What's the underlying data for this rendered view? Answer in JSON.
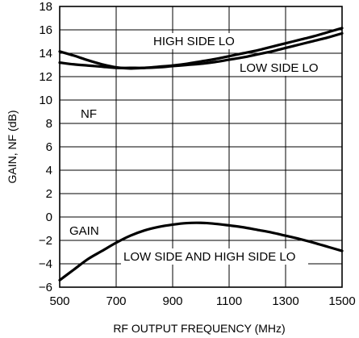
{
  "chart_data": {
    "type": "line",
    "xlabel": "RF OUTPUT FREQUENCY (MHz)",
    "ylabel": "GAIN, NF (dB)",
    "xlim": [
      500,
      1500
    ],
    "ylim": [
      -6,
      18
    ],
    "x_ticks": [
      500,
      700,
      900,
      1100,
      1300,
      1500
    ],
    "y_ticks": [
      -6,
      -4,
      -2,
      0,
      2,
      4,
      6,
      8,
      10,
      12,
      14,
      16,
      18
    ],
    "x_tick_labels": [
      "500",
      "700",
      "900",
      "1100",
      "1300",
      "1500"
    ],
    "y_tick_labels": [
      "−6",
      "−4",
      "−2",
      "0",
      "2",
      "4",
      "6",
      "8",
      "10",
      "12",
      "14",
      "16",
      "18"
    ],
    "grid": true,
    "series": [
      {
        "group": "nf",
        "x": [
          500,
          550,
          600,
          650,
          700,
          750,
          800,
          850,
          900,
          950,
          1000,
          1050,
          1100,
          1150,
          1200,
          1250,
          1300,
          1350,
          1400,
          1450,
          1500
        ],
        "y": [
          14.15,
          13.8,
          13.4,
          13.05,
          12.8,
          12.7,
          12.75,
          12.85,
          12.95,
          13.1,
          13.3,
          13.5,
          13.75,
          14.0,
          14.25,
          14.55,
          14.85,
          15.15,
          15.45,
          15.8,
          16.15
        ]
      },
      {
        "group": "nf",
        "x": [
          500,
          550,
          600,
          650,
          700,
          750,
          800,
          850,
          900,
          950,
          1000,
          1050,
          1100,
          1150,
          1200,
          1250,
          1300,
          1350,
          1400,
          1450,
          1500
        ],
        "y": [
          13.2,
          13.05,
          12.95,
          12.85,
          12.75,
          12.75,
          12.75,
          12.8,
          12.9,
          13.0,
          13.1,
          13.25,
          13.45,
          13.65,
          13.9,
          14.15,
          14.45,
          14.75,
          15.05,
          15.35,
          15.7
        ]
      },
      {
        "group": "gain",
        "x": [
          500,
          550,
          600,
          650,
          700,
          750,
          800,
          850,
          900,
          950,
          1000,
          1050,
          1100,
          1150,
          1200,
          1250,
          1300,
          1350,
          1400,
          1450,
          1500
        ],
        "y": [
          -5.4,
          -4.5,
          -3.6,
          -2.9,
          -2.2,
          -1.6,
          -1.15,
          -0.85,
          -0.65,
          -0.52,
          -0.5,
          -0.58,
          -0.72,
          -0.88,
          -1.1,
          -1.32,
          -1.6,
          -1.88,
          -2.2,
          -2.55,
          -2.9
        ]
      }
    ],
    "annotations": [
      "HIGH SIDE LO",
      "LOW SIDE LO",
      "NF",
      "GAIN",
      "LOW SIDE AND HIGH SIDE LO"
    ]
  }
}
